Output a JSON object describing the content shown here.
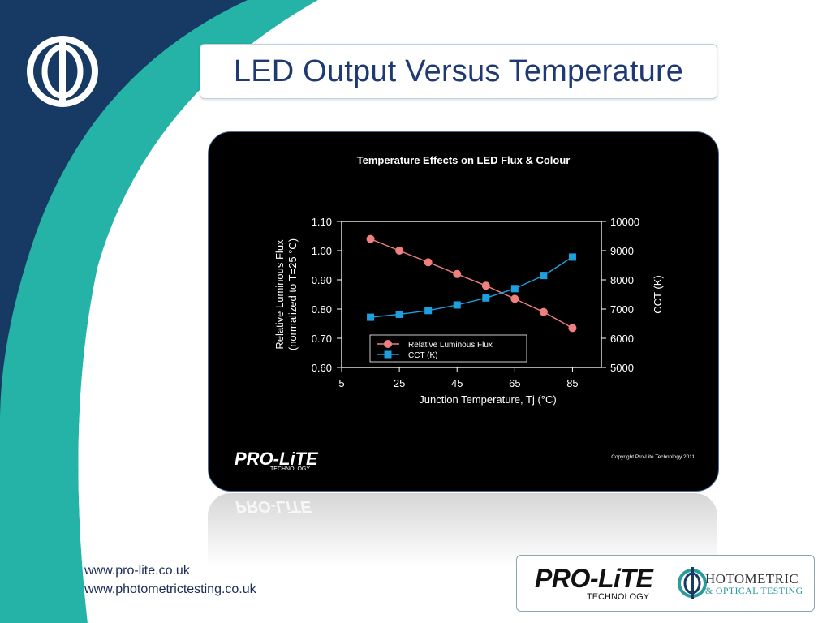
{
  "slide": {
    "title": "LED Output Versus Temperature",
    "links": [
      "www.pro-lite.co.uk",
      "www.photometrictesting.co.uk"
    ],
    "colors": {
      "navy": "#163a63",
      "teal": "#25b3a8",
      "title_text": "#1f3a73"
    },
    "icons": {
      "corner_logo": "phi-circle-logo-icon",
      "footer_logo": "phi-photometric-logo-icon"
    }
  },
  "branding": {
    "prolite": "PRO-LiTE",
    "technology": "TECHNOLOGY",
    "copyright": "Copyright Pro-Lite Technology 2011",
    "photometric_main": "HOTOMETRIC",
    "photometric_sub": "& OPTICAL TESTING"
  },
  "chart_data": {
    "type": "line",
    "title": "Temperature Effects on LED Flux & Colour",
    "xlabel": "Junction Temperature, Tj (°C)",
    "ylabel": "Relative Luminous Flux (normalized to T=25 °C)",
    "y2label": "CCT (K)",
    "x_ticks": [
      5,
      25,
      45,
      65,
      85
    ],
    "y_ticks": [
      "0.60",
      "0.70",
      "0.80",
      "0.90",
      "1.00",
      "1.10"
    ],
    "y2_ticks": [
      "5000",
      "6000",
      "7000",
      "8000",
      "9000",
      "10000"
    ],
    "xlim": [
      5,
      95
    ],
    "ylim": [
      0.6,
      1.1
    ],
    "y2lim": [
      5000,
      10000
    ],
    "legend_position": "lower-center",
    "series": [
      {
        "name": "Relative Luminous Flux",
        "axis": "left",
        "color": "#f08080",
        "marker": "circle",
        "x": [
          15,
          25,
          35,
          45,
          55,
          65,
          75,
          85
        ],
        "y": [
          1.04,
          1.0,
          0.96,
          0.92,
          0.88,
          0.835,
          0.79,
          0.735
        ]
      },
      {
        "name": "CCT (K)",
        "axis": "right",
        "color": "#1e9fe0",
        "marker": "square",
        "x": [
          15,
          25,
          35,
          45,
          55,
          65,
          75,
          85
        ],
        "y": [
          6720,
          6820,
          6950,
          7140,
          7380,
          7700,
          8150,
          8780
        ]
      }
    ]
  }
}
